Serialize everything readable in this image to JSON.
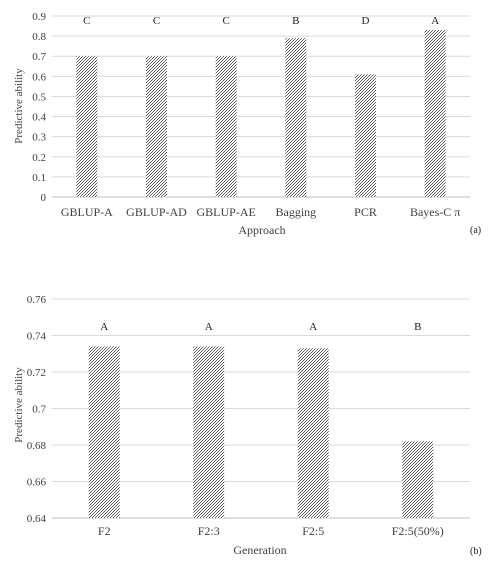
{
  "chart_data": [
    {
      "type": "bar",
      "panel_label": "(a)",
      "categories": [
        "GBLUP-A",
        "GBLUP-AD",
        "GBLUP-AE",
        "Bagging",
        "PCR",
        "Bayes-C π"
      ],
      "values": [
        0.7,
        0.7,
        0.7,
        0.79,
        0.61,
        0.83
      ],
      "significance_letters": [
        "C",
        "C",
        "C",
        "B",
        "D",
        "A"
      ],
      "xlabel": "Approach",
      "ylabel": "Predictive ability",
      "ylim": [
        0,
        0.9
      ],
      "yticks": [
        "0",
        "0.1",
        "0.2",
        "0.3",
        "0.4",
        "0.5",
        "0.6",
        "0.7",
        "0.8",
        "0.9"
      ],
      "grid": true,
      "bar_fill": "dense grey hatch"
    },
    {
      "type": "bar",
      "panel_label": "(b)",
      "categories": [
        "F2",
        "F2:3",
        "F2:5",
        "F2:5(50%)"
      ],
      "values": [
        0.734,
        0.734,
        0.733,
        0.682
      ],
      "significance_letters": [
        "A",
        "A",
        "A",
        "B"
      ],
      "xlabel": "Generation",
      "ylabel": "Predictive ability",
      "ylim": [
        0.64,
        0.76
      ],
      "yticks": [
        "0.64",
        "0.66",
        "0.68",
        "0.7",
        "0.72",
        "0.74",
        "0.76"
      ],
      "grid": true,
      "bar_fill": "dense grey hatch"
    }
  ],
  "colors": {
    "grid": "#d9d9d9",
    "axis": "#bfbfbf",
    "text": "#404040",
    "bar_dark": "#5a5a5a",
    "bar_light": "#ffffff"
  }
}
